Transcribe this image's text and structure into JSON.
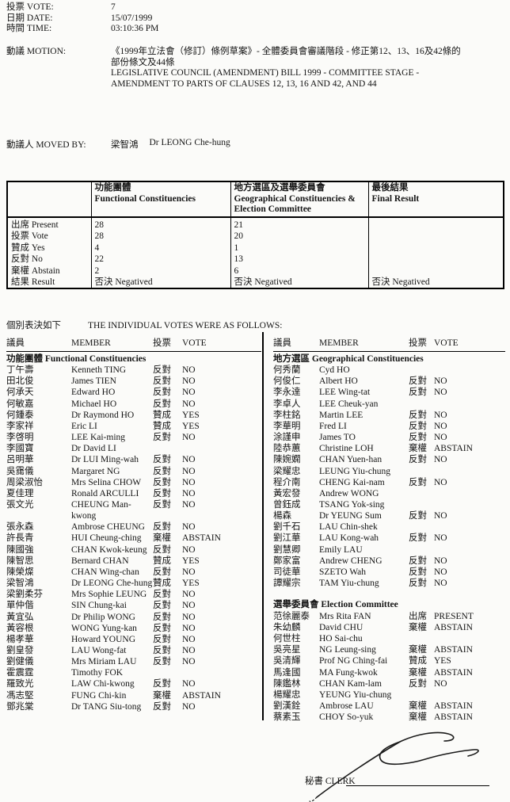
{
  "colors": {
    "paper": "#fbfbf9",
    "ink": "#141414",
    "border": "#000000"
  },
  "info": {
    "rows": [
      {
        "label": "投票 VOTE:",
        "value": "7"
      },
      {
        "label": "日期 DATE:",
        "value": "15/07/1999"
      },
      {
        "label": "時間 TIME:",
        "value": "03:10:36 PM"
      }
    ]
  },
  "motion": {
    "label": "動議 MOTION:",
    "text_cn": "《1999年立法會（修訂）條例草案》- 全體委員會審議階段 - 修正第12、13、16及42條的\n部份條文及44條",
    "text_en": "LEGISLATIVE COUNCIL (AMENDMENT) BILL 1999 - COMMITTEE STAGE -\nAMENDMENT TO PARTS OF CLAUSES 12, 13, 16 AND 42, AND 44"
  },
  "moved_by": {
    "label": "動議人 MOVED BY:",
    "name_cn": "梁智鴻",
    "name_en": "Dr LEONG Che-hung"
  },
  "summary": {
    "columns": [
      {
        "cn": "功能團體",
        "en": "Functional Constituencies"
      },
      {
        "cn": "地方選區及選舉委員會",
        "en": "Geographical Constituencies & Election Committee"
      },
      {
        "cn": "最後結果",
        "en": "Final Result"
      }
    ],
    "rows": [
      {
        "label": "出席 Present",
        "indent": false,
        "fc": "28",
        "gc": "21",
        "final": ""
      },
      {
        "label": "投票 Vote",
        "indent": false,
        "fc": "28",
        "gc": "20",
        "final": ""
      },
      {
        "label": "贊成 Yes",
        "indent": true,
        "fc": "4",
        "gc": "1",
        "final": ""
      },
      {
        "label": "反對 No",
        "indent": true,
        "fc": "22",
        "gc": "13",
        "final": ""
      },
      {
        "label": "棄權 Abstain",
        "indent": true,
        "fc": "2",
        "gc": "6",
        "final": ""
      },
      {
        "label": "結果 Result",
        "indent": false,
        "fc": "否決 Negatived",
        "gc": "否決 Negatived",
        "final": "否決 Negatived"
      }
    ]
  },
  "individual": {
    "title_cn": "個別表決如下",
    "title_en": "THE INDIVIDUAL VOTES WERE AS FOLLOWS:",
    "col_headers": {
      "member_cn": "議員",
      "member_en": "MEMBER",
      "vote_cn": "投票",
      "vote_en": "VOTE"
    },
    "left_sections": [
      {
        "heading": "功能團體 Functional Constituencies",
        "rows": [
          {
            "cn": "丁午壽",
            "en": "Kenneth TING",
            "vote_cn": "反對",
            "vote_en": "NO"
          },
          {
            "cn": "田北俊",
            "en": "James TIEN",
            "vote_cn": "反對",
            "vote_en": "NO"
          },
          {
            "cn": "何承天",
            "en": "Edward HO",
            "vote_cn": "反對",
            "vote_en": "NO"
          },
          {
            "cn": "何敏嘉",
            "en": "Michael HO",
            "vote_cn": "反對",
            "vote_en": "NO"
          },
          {
            "cn": "何鍾泰",
            "en": "Dr Raymond HO",
            "vote_cn": "贊成",
            "vote_en": "YES"
          },
          {
            "cn": "李家祥",
            "en": "Eric LI",
            "vote_cn": "贊成",
            "vote_en": "YES"
          },
          {
            "cn": "李啓明",
            "en": "LEE Kai-ming",
            "vote_cn": "反對",
            "vote_en": "NO"
          },
          {
            "cn": "李國寶",
            "en": "Dr David LI",
            "vote_cn": "",
            "vote_en": ""
          },
          {
            "cn": "呂明華",
            "en": "Dr LUI Ming-wah",
            "vote_cn": "反對",
            "vote_en": "NO"
          },
          {
            "cn": "吳靄儀",
            "en": "Margaret NG",
            "vote_cn": "反對",
            "vote_en": "NO"
          },
          {
            "cn": "周梁淑怡",
            "en": "Mrs Selina CHOW",
            "vote_cn": "反對",
            "vote_en": "NO"
          },
          {
            "cn": "夏佳理",
            "en": "Ronald ARCULLI",
            "vote_cn": "反對",
            "vote_en": "NO"
          },
          {
            "cn": "張文光",
            "en": "CHEUNG Man-kwong",
            "vote_cn": "反對",
            "vote_en": "NO"
          },
          {
            "cn": "張永森",
            "en": "Ambrose CHEUNG",
            "vote_cn": "反對",
            "vote_en": "NO"
          },
          {
            "cn": "許長青",
            "en": "HUI Cheung-ching",
            "vote_cn": "棄權",
            "vote_en": "ABSTAIN"
          },
          {
            "cn": "陳國強",
            "en": "CHAN Kwok-keung",
            "vote_cn": "反對",
            "vote_en": "NO"
          },
          {
            "cn": "陳智思",
            "en": "Bernard CHAN",
            "vote_cn": "贊成",
            "vote_en": "YES"
          },
          {
            "cn": "陳榮燦",
            "en": "CHAN Wing-chan",
            "vote_cn": "反對",
            "vote_en": "NO"
          },
          {
            "cn": "梁智鴻",
            "en": "Dr LEONG Che-hung",
            "vote_cn": "贊成",
            "vote_en": "YES"
          },
          {
            "cn": "梁劉柔芬",
            "en": "Mrs Sophie LEUNG",
            "vote_cn": "反對",
            "vote_en": "NO"
          },
          {
            "cn": "單仲偕",
            "en": "SIN Chung-kai",
            "vote_cn": "反對",
            "vote_en": "NO"
          },
          {
            "cn": "黃宜弘",
            "en": "Dr Philip WONG",
            "vote_cn": "反對",
            "vote_en": "NO"
          },
          {
            "cn": "黃容根",
            "en": "WONG Yung-kan",
            "vote_cn": "反對",
            "vote_en": "NO"
          },
          {
            "cn": "楊孝華",
            "en": "Howard YOUNG",
            "vote_cn": "反對",
            "vote_en": "NO"
          },
          {
            "cn": "劉皇發",
            "en": "LAU Wong-fat",
            "vote_cn": "反對",
            "vote_en": "NO"
          },
          {
            "cn": "劉健儀",
            "en": "Mrs Miriam LAU",
            "vote_cn": "反對",
            "vote_en": "NO"
          },
          {
            "cn": "霍震霆",
            "en": "Timothy FOK",
            "vote_cn": "",
            "vote_en": ""
          },
          {
            "cn": "羅致光",
            "en": "LAW Chi-kwong",
            "vote_cn": "反對",
            "vote_en": "NO"
          },
          {
            "cn": "馮志堅",
            "en": "FUNG Chi-kin",
            "vote_cn": "棄權",
            "vote_en": "ABSTAIN"
          },
          {
            "cn": "鄧兆棠",
            "en": "Dr TANG Siu-tong",
            "vote_cn": "反對",
            "vote_en": "NO"
          }
        ]
      }
    ],
    "right_sections": [
      {
        "heading": "地方選區 Geographical Constituencies",
        "rows": [
          {
            "cn": "何秀蘭",
            "en": "Cyd HO",
            "vote_cn": "",
            "vote_en": ""
          },
          {
            "cn": "何俊仁",
            "en": "Albert HO",
            "vote_cn": "反對",
            "vote_en": "NO"
          },
          {
            "cn": "李永達",
            "en": "LEE Wing-tat",
            "vote_cn": "反對",
            "vote_en": "NO"
          },
          {
            "cn": "李卓人",
            "en": "LEE Cheuk-yan",
            "vote_cn": "",
            "vote_en": ""
          },
          {
            "cn": "李柱銘",
            "en": "Martin LEE",
            "vote_cn": "反對",
            "vote_en": "NO"
          },
          {
            "cn": "李華明",
            "en": "Fred LI",
            "vote_cn": "反對",
            "vote_en": "NO"
          },
          {
            "cn": "涂謹申",
            "en": "James TO",
            "vote_cn": "反對",
            "vote_en": "NO"
          },
          {
            "cn": "陸恭蕙",
            "en": "Christine LOH",
            "vote_cn": "棄權",
            "vote_en": "ABSTAIN"
          },
          {
            "cn": "陳婉嫻",
            "en": "CHAN Yuen-han",
            "vote_cn": "反對",
            "vote_en": "NO"
          },
          {
            "cn": "梁耀忠",
            "en": "LEUNG Yiu-chung",
            "vote_cn": "",
            "vote_en": ""
          },
          {
            "cn": "程介南",
            "en": "CHENG Kai-nam",
            "vote_cn": "反對",
            "vote_en": "NO"
          },
          {
            "cn": "黃宏發",
            "en": "Andrew WONG",
            "vote_cn": "",
            "vote_en": ""
          },
          {
            "cn": "曾鈺成",
            "en": "TSANG Yok-sing",
            "vote_cn": "",
            "vote_en": ""
          },
          {
            "cn": "楊森",
            "en": "Dr YEUNG Sum",
            "vote_cn": "反對",
            "vote_en": "NO"
          },
          {
            "cn": "劉千石",
            "en": "LAU Chin-shek",
            "vote_cn": "",
            "vote_en": ""
          },
          {
            "cn": "劉江華",
            "en": "LAU Kong-wah",
            "vote_cn": "反對",
            "vote_en": "NO"
          },
          {
            "cn": "劉慧卿",
            "en": "Emily LAU",
            "vote_cn": "",
            "vote_en": ""
          },
          {
            "cn": "鄭家富",
            "en": "Andrew CHENG",
            "vote_cn": "反對",
            "vote_en": "NO"
          },
          {
            "cn": "司徒華",
            "en": "SZETO Wah",
            "vote_cn": "反對",
            "vote_en": "NO"
          },
          {
            "cn": "譚耀宗",
            "en": "TAM Yiu-chung",
            "vote_cn": "反對",
            "vote_en": "NO"
          }
        ]
      },
      {
        "heading": "選舉委員會 Election Committee",
        "rows": [
          {
            "cn": "范徐麗泰",
            "en": "Mrs Rita FAN",
            "vote_cn": "出席",
            "vote_en": "PRESENT"
          },
          {
            "cn": "朱幼麟",
            "en": "David CHU",
            "vote_cn": "棄權",
            "vote_en": "ABSTAIN"
          },
          {
            "cn": "何世柱",
            "en": "HO Sai-chu",
            "vote_cn": "",
            "vote_en": ""
          },
          {
            "cn": "吳亮星",
            "en": "NG Leung-sing",
            "vote_cn": "棄權",
            "vote_en": "ABSTAIN"
          },
          {
            "cn": "吳清輝",
            "en": "Prof NG Ching-fai",
            "vote_cn": "贊成",
            "vote_en": "YES"
          },
          {
            "cn": "馬逢國",
            "en": "MA Fung-kwok",
            "vote_cn": "棄權",
            "vote_en": "ABSTAIN"
          },
          {
            "cn": "陳鑑林",
            "en": "CHAN Kam-lam",
            "vote_cn": "反對",
            "vote_en": "NO"
          },
          {
            "cn": "楊耀忠",
            "en": "YEUNG Yiu-chung",
            "vote_cn": "",
            "vote_en": ""
          },
          {
            "cn": "劉漢銓",
            "en": "Ambrose LAU",
            "vote_cn": "棄權",
            "vote_en": "ABSTAIN"
          },
          {
            "cn": "蔡素玉",
            "en": "CHOY So-yuk",
            "vote_cn": "棄權",
            "vote_en": "ABSTAIN"
          }
        ]
      }
    ]
  },
  "clerk": {
    "label": "秘書 CLERK"
  }
}
